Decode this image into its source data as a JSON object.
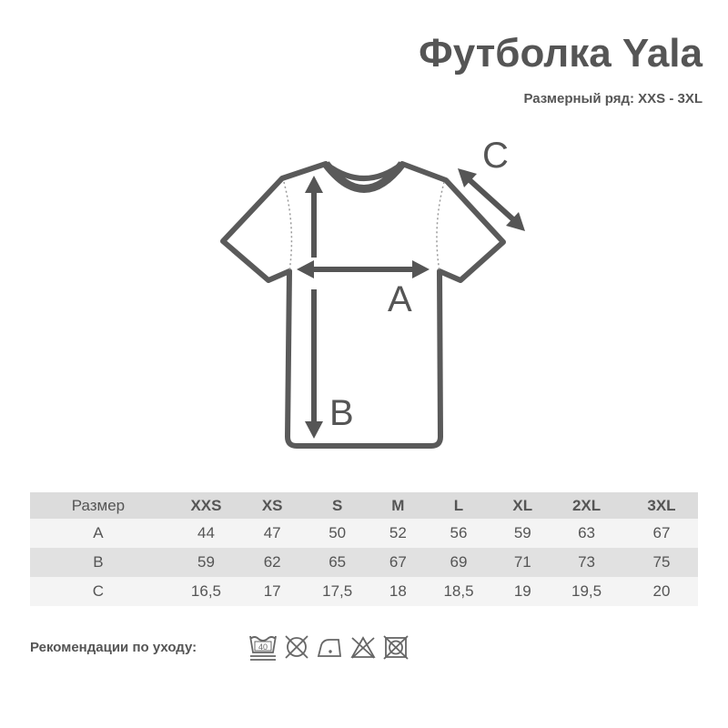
{
  "title": "Футболка Yala",
  "subtitle": "Размерный ряд: XXS - 3XL",
  "diagram": {
    "labels": {
      "a": "A",
      "b": "B",
      "c": "C"
    },
    "outline_color": "#5a5a5a"
  },
  "table": {
    "headers": [
      "Размер",
      "XXS",
      "XS",
      "S",
      "M",
      "L",
      "XL",
      "2XL",
      "3XL"
    ],
    "rows": [
      [
        "A",
        "44",
        "47",
        "50",
        "52",
        "56",
        "59",
        "63",
        "67"
      ],
      [
        "B",
        "59",
        "62",
        "65",
        "67",
        "69",
        "71",
        "73",
        "75"
      ],
      [
        "C",
        "16,5",
        "17",
        "17,5",
        "18",
        "18,5",
        "19",
        "19,5",
        "20"
      ]
    ]
  },
  "care": {
    "label": "Рекомендации по уходу:",
    "wash_temp": "40",
    "icons": [
      "wash-40-icon",
      "no-dry-clean-icon",
      "iron-low-icon",
      "no-bleach-icon",
      "no-tumble-dry-icon"
    ]
  }
}
